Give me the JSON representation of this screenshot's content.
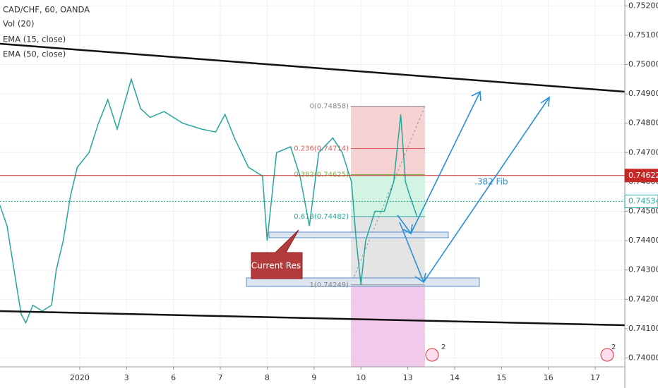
{
  "chart_data": {
    "type": "line",
    "title": "CAD/CHF, 60, OANDA",
    "indicators": [
      "Vol (20)",
      "EMA (15, close)",
      "EMA (50, close)"
    ],
    "x": [
      -1.7,
      -1.55,
      -1.45,
      -1.35,
      -1.25,
      -1.15,
      -1.0,
      -0.8,
      -0.6,
      -0.5,
      -0.35,
      -0.2,
      -0.05,
      0.2,
      0.4,
      0.6,
      0.8,
      1.1,
      1.3,
      1.5,
      1.8,
      2.2,
      2.6,
      2.9,
      3.1,
      3.3,
      3.6,
      3.9,
      4.0,
      4.2,
      4.5,
      4.7,
      4.9,
      5.1,
      5.4,
      5.6,
      5.8,
      5.9,
      6.0,
      6.1,
      6.3,
      6.5,
      6.7,
      6.85,
      6.95,
      7.05,
      7.2
    ],
    "values": [
      0.7452,
      0.7445,
      0.7435,
      0.7425,
      0.7415,
      0.7412,
      0.7418,
      0.7416,
      0.7418,
      0.743,
      0.744,
      0.7455,
      0.7465,
      0.747,
      0.748,
      0.7488,
      0.7478,
      0.7495,
      0.7485,
      0.7482,
      0.7484,
      0.748,
      0.7478,
      0.7477,
      0.7483,
      0.7475,
      0.7465,
      0.7462,
      0.744,
      0.747,
      0.7472,
      0.7462,
      0.7445,
      0.747,
      0.7475,
      0.747,
      0.746,
      0.744,
      0.7425,
      0.744,
      0.745,
      0.745,
      0.746,
      0.7483,
      0.746,
      0.7455,
      0.7448
    ],
    "color": "#26a69a",
    "xlim": [
      -1.7,
      11.63
    ],
    "xticks": [
      {
        "value": 0,
        "label": "2020"
      },
      {
        "value": 1,
        "label": "3"
      },
      {
        "value": 2,
        "label": "6"
      },
      {
        "value": 3,
        "label": "7"
      },
      {
        "value": 4,
        "label": "8"
      },
      {
        "value": 5,
        "label": "9"
      },
      {
        "value": 6,
        "label": "10"
      },
      {
        "value": 7,
        "label": "13"
      },
      {
        "value": 8,
        "label": "14"
      },
      {
        "value": 9,
        "label": "15"
      },
      {
        "value": 10,
        "label": "16"
      },
      {
        "value": 11,
        "label": "17"
      }
    ],
    "ylim": [
      0.7397,
      0.7522
    ],
    "yticks": [
      {
        "value": 0.74,
        "label": "0.74000"
      },
      {
        "value": 0.741,
        "label": "0.74100"
      },
      {
        "value": 0.742,
        "label": "0.74200"
      },
      {
        "value": 0.743,
        "label": "0.74300"
      },
      {
        "value": 0.744,
        "label": "0.74400"
      },
      {
        "value": 0.745,
        "label": "0.74500"
      },
      {
        "value": 0.746,
        "label": "0.74600"
      },
      {
        "value": 0.747,
        "label": "0.74700"
      },
      {
        "value": 0.748,
        "label": "0.74800"
      },
      {
        "value": 0.749,
        "label": "0.74900"
      },
      {
        "value": 0.75,
        "label": "0.75000"
      },
      {
        "value": 0.751,
        "label": "0.75100"
      },
      {
        "value": 0.752,
        "label": "0.75200"
      }
    ],
    "grid": true,
    "fib_levels": [
      {
        "value": 0.74858,
        "label": "0(0.74858)",
        "color": "#888888"
      },
      {
        "value": 0.74714,
        "label": "0.236(0.74714)",
        "color": "#e05a5a"
      },
      {
        "value": 0.74625,
        "label": "0.382(0.74625)",
        "color": "#7cb342"
      },
      {
        "value": 0.74482,
        "label": "0.618(0.74482)",
        "color": "#26a69a"
      },
      {
        "value": 0.74249,
        "label": "1(0.74249)",
        "color": "#888888"
      }
    ],
    "price_lines": [
      {
        "value": 0.74622,
        "color": "#c62828"
      },
      {
        "value": 0.74534,
        "color": "#26a69a"
      }
    ],
    "annotations": [
      "Current Res",
      ".382 Fib"
    ],
    "badges": [
      "2",
      "2"
    ]
  }
}
